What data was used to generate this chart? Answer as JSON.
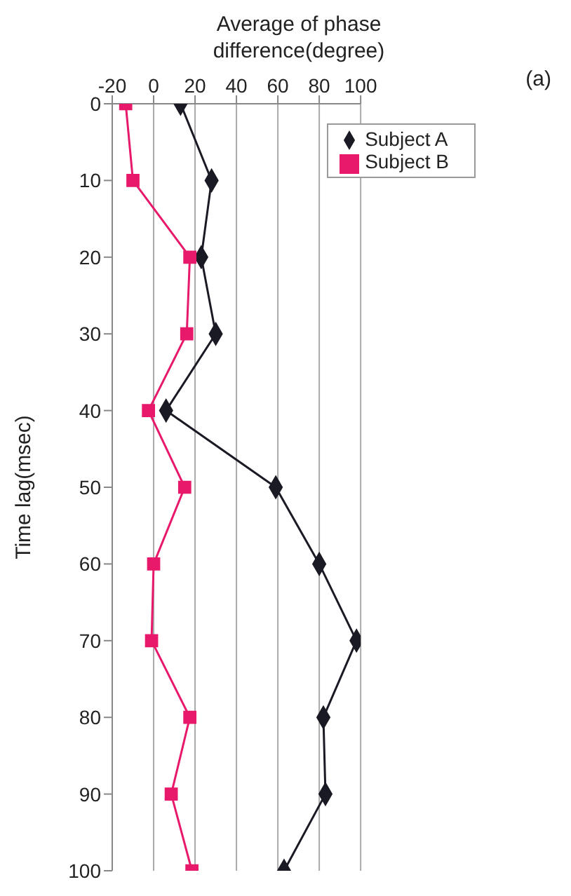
{
  "chart_data": {
    "type": "line",
    "title": "(a)",
    "xlabel": "Average of phase difference(degree)",
    "ylabel": "Time lag(msec)",
    "series": [
      {
        "name": "Subject A",
        "color": "#1a1a24",
        "marker": "diamond",
        "x": [
          13,
          28,
          23,
          30,
          6,
          59,
          80,
          98,
          82,
          83,
          63
        ],
        "values": [
          0,
          10,
          20,
          30,
          40,
          50,
          60,
          70,
          80,
          90,
          100
        ]
      },
      {
        "name": "Subject B",
        "color": "#e8196a",
        "marker": "square",
        "x": [
          -13.5,
          -10,
          17.5,
          16,
          -2.5,
          15,
          0,
          -1,
          17.5,
          8.5,
          18.5
        ],
        "values": [
          0,
          10,
          20,
          30,
          40,
          50,
          60,
          70,
          80,
          90,
          100
        ]
      }
    ],
    "xlim": [
      -20,
      100
    ],
    "xticks": [
      -20,
      0,
      20,
      40,
      60,
      80,
      100
    ],
    "ylim": [
      100,
      0
    ],
    "yticks": [
      0,
      10,
      20,
      30,
      40,
      50,
      60,
      70,
      80,
      90,
      100
    ],
    "grid": "x",
    "legend": "top right",
    "line_style": "solid"
  }
}
